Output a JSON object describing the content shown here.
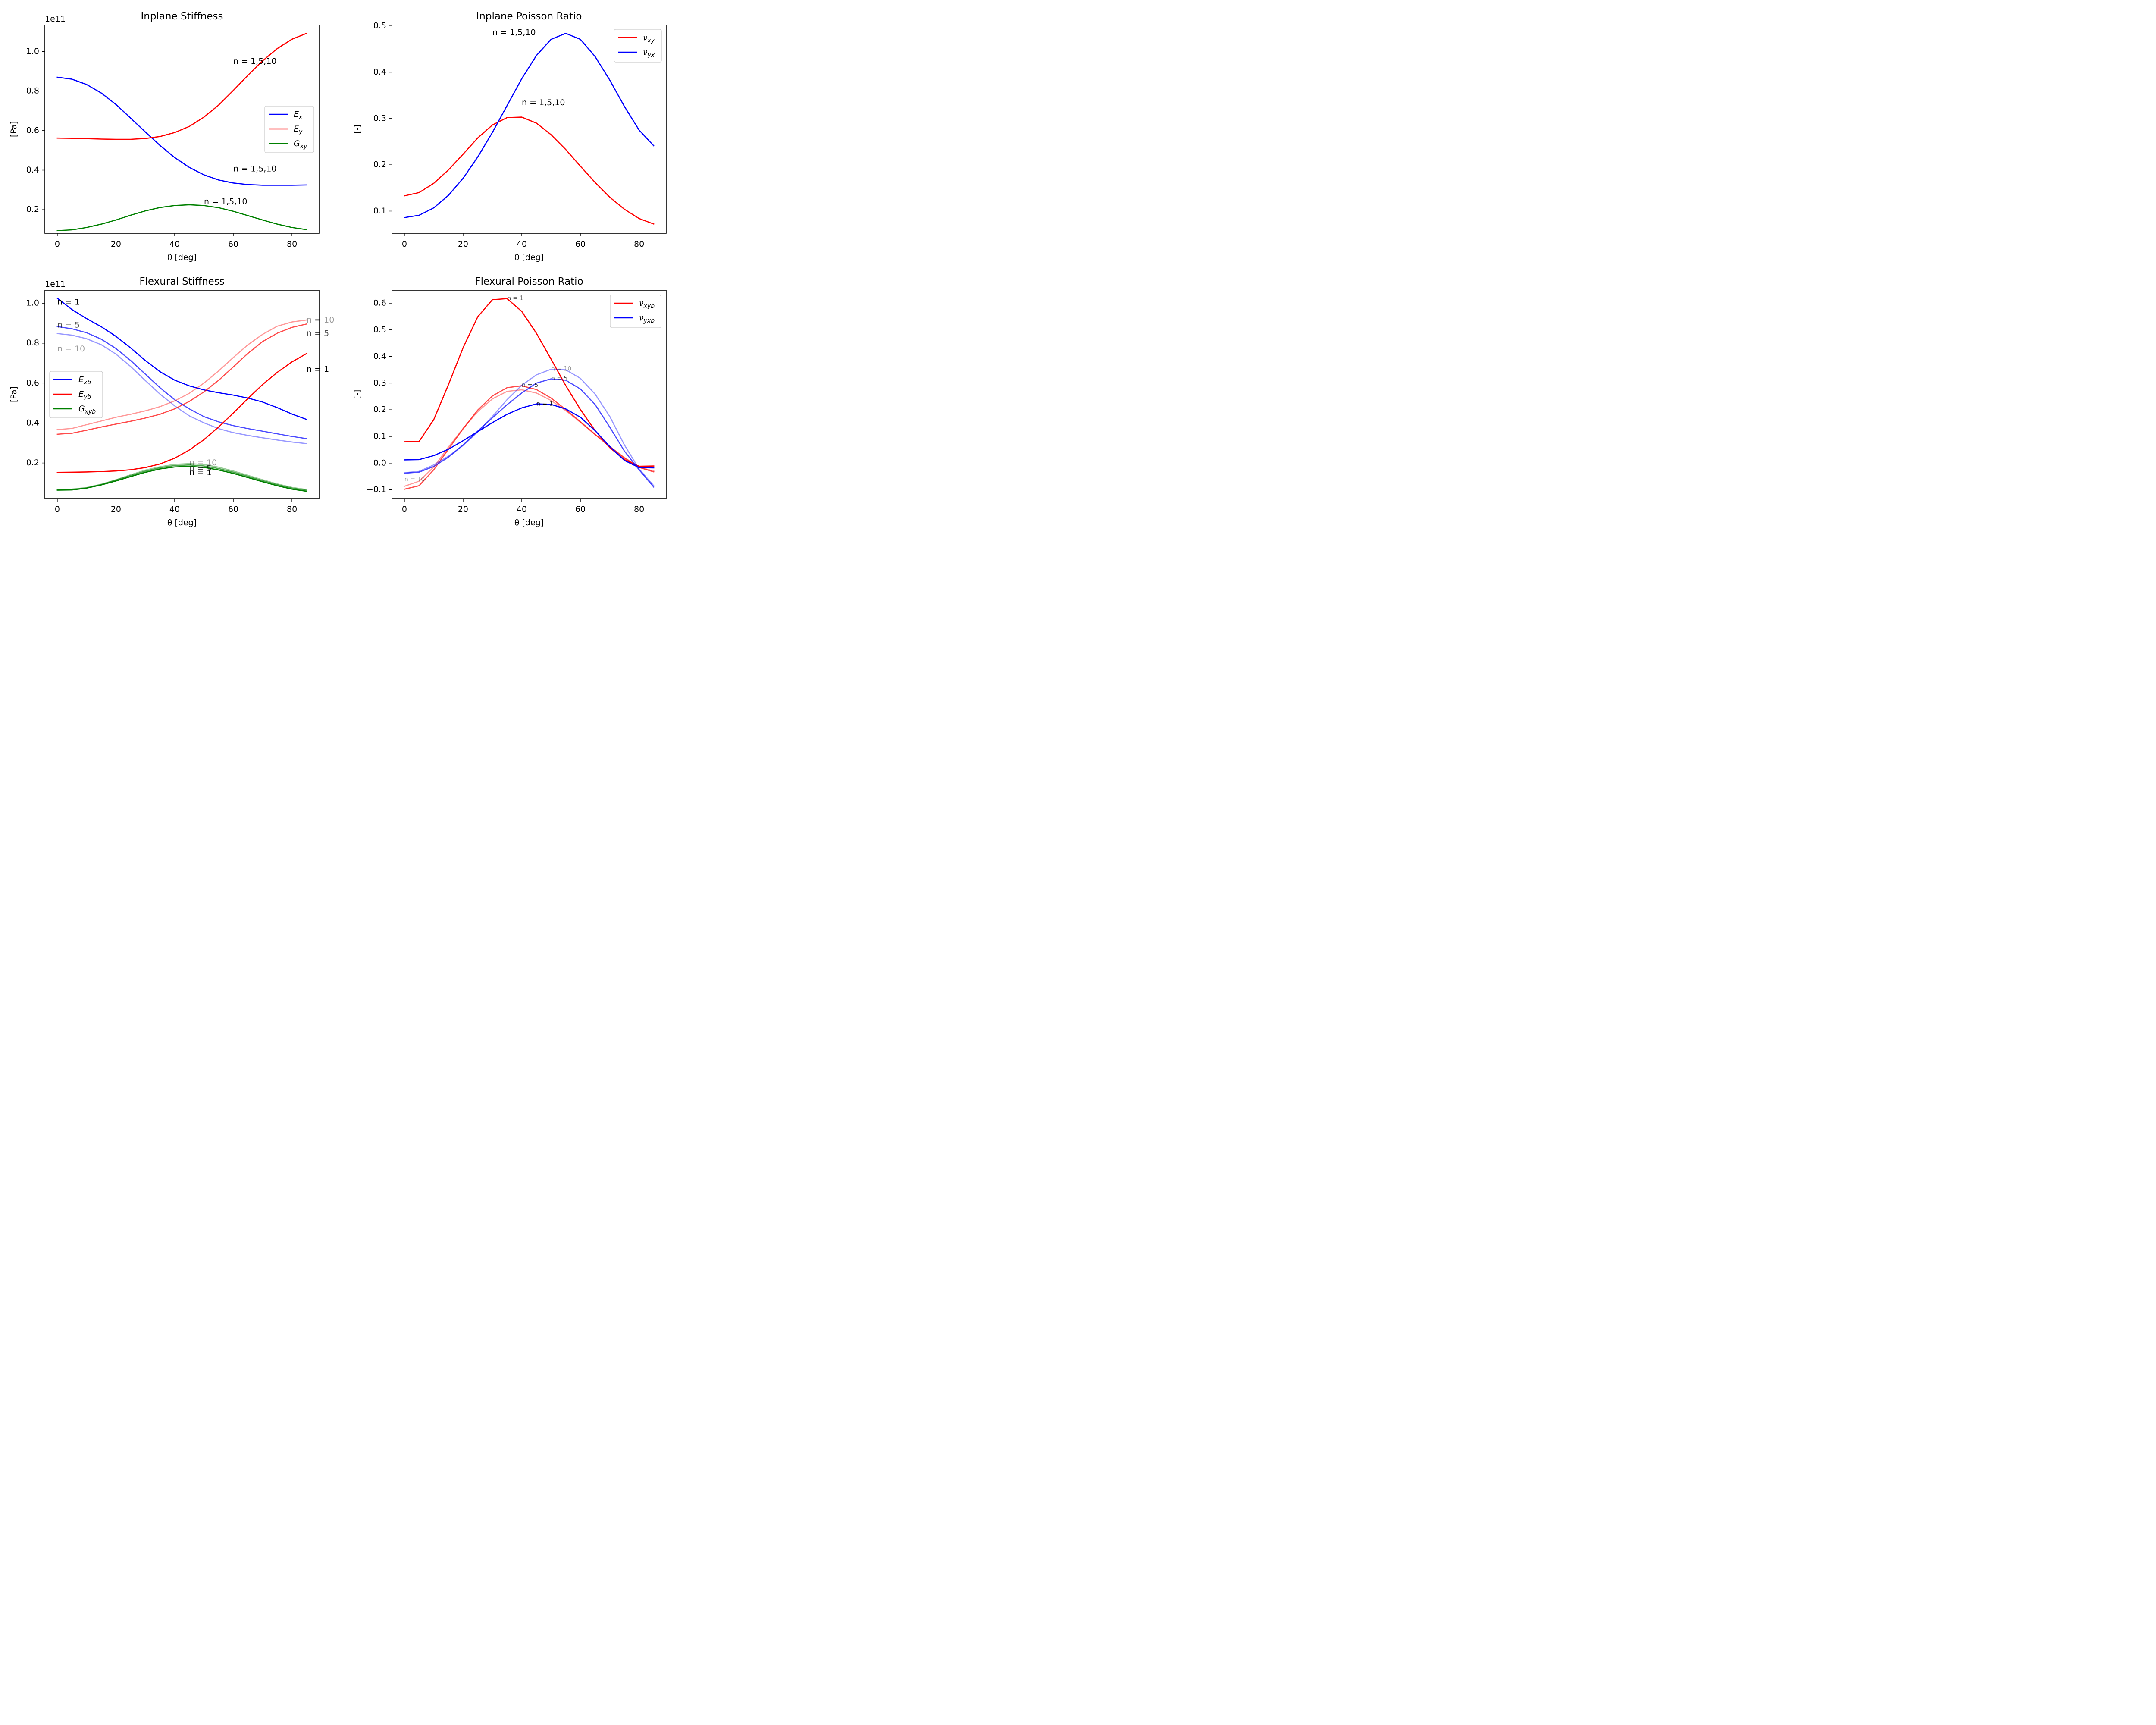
{
  "chart_data": [
    {
      "type": "line",
      "title": "Inplane Stiffness",
      "xlabel": "θ [deg]",
      "ylabel": "[Pa]",
      "offset_text": "1e11",
      "xlim": [
        -4.25,
        89.25
      ],
      "ylim": [
        0.0805,
        1.134
      ],
      "xticks": [
        0,
        20,
        40,
        60,
        80
      ],
      "xtick_labels": [
        "0",
        "20",
        "40",
        "60",
        "80"
      ],
      "yticks": [
        0.2,
        0.4,
        0.6,
        0.8,
        1.0
      ],
      "ytick_labels": [
        "0.2",
        "0.4",
        "0.6",
        "0.8",
        "1.0"
      ],
      "x": [
        0,
        5,
        10,
        15,
        20,
        25,
        30,
        35,
        40,
        45,
        50,
        55,
        60,
        65,
        70,
        75,
        80,
        85
      ],
      "legend": {
        "position": "center-right",
        "entries": [
          {
            "label": "E",
            "sub": "x",
            "color": "#0000ff"
          },
          {
            "label": "E",
            "sub": "y",
            "color": "#ff0000"
          },
          {
            "label": "G",
            "sub": "xy",
            "color": "#008000"
          }
        ]
      },
      "series": [
        {
          "name": "E_x",
          "color": "#0000ff",
          "alpha": 1,
          "values": [
            0.87,
            0.86,
            0.833,
            0.79,
            0.732,
            0.663,
            0.593,
            0.525,
            0.464,
            0.414,
            0.376,
            0.35,
            0.335,
            0.327,
            0.324,
            0.324,
            0.324,
            0.325
          ]
        },
        {
          "name": "E_y",
          "color": "#ff0000",
          "alpha": 1,
          "values": [
            0.562,
            0.561,
            0.559,
            0.557,
            0.556,
            0.556,
            0.56,
            0.57,
            0.59,
            0.621,
            0.668,
            0.729,
            0.803,
            0.88,
            0.953,
            1.015,
            1.062,
            1.092
          ]
        },
        {
          "name": "G_xy",
          "color": "#008000",
          "alpha": 1,
          "values": [
            0.094,
            0.098,
            0.11,
            0.127,
            0.148,
            0.172,
            0.194,
            0.211,
            0.221,
            0.225,
            0.221,
            0.21,
            0.192,
            0.17,
            0.148,
            0.127,
            0.11,
            0.099
          ]
        }
      ],
      "annotations": [
        {
          "text": "n = 1,5,10",
          "x": 60,
          "y": 0.95,
          "color": "#ff0000",
          "alpha": 1,
          "size": 19
        },
        {
          "text": "n = 1,5,10",
          "x": 60,
          "y": 0.405,
          "color": "#0000ff",
          "alpha": 1,
          "size": 19
        },
        {
          "text": "n = 1,5,10",
          "x": 50,
          "y": 0.24,
          "color": "#008000",
          "alpha": 1,
          "size": 19
        }
      ]
    },
    {
      "type": "line",
      "title": "Inplane Poisson Ratio",
      "xlabel": "θ [deg]",
      "ylabel": "[-]",
      "offset_text": "",
      "xlim": [
        -4.25,
        89.25
      ],
      "ylim": [
        0.052,
        0.502
      ],
      "xticks": [
        0,
        20,
        40,
        60,
        80
      ],
      "xtick_labels": [
        "0",
        "20",
        "40",
        "60",
        "80"
      ],
      "yticks": [
        0.1,
        0.2,
        0.3,
        0.4,
        0.5
      ],
      "ytick_labels": [
        "0.1",
        "0.2",
        "0.3",
        "0.4",
        "0.5"
      ],
      "x": [
        0,
        5,
        10,
        15,
        20,
        25,
        30,
        35,
        40,
        45,
        50,
        55,
        60,
        65,
        70,
        75,
        80,
        85
      ],
      "legend": {
        "position": "top-right",
        "entries": [
          {
            "label": "ν",
            "sub": "xy",
            "color": "#ff0000"
          },
          {
            "label": "ν",
            "sub": "yx",
            "color": "#0000ff"
          }
        ]
      },
      "series": [
        {
          "name": "ν_xy",
          "color": "#ff0000",
          "alpha": 1,
          "values": [
            0.133,
            0.14,
            0.16,
            0.189,
            0.223,
            0.258,
            0.286,
            0.302,
            0.303,
            0.29,
            0.265,
            0.233,
            0.197,
            0.162,
            0.13,
            0.104,
            0.084,
            0.072
          ]
        },
        {
          "name": "ν_yx",
          "color": "#0000ff",
          "alpha": 1,
          "values": [
            0.086,
            0.091,
            0.107,
            0.134,
            0.171,
            0.217,
            0.27,
            0.328,
            0.386,
            0.436,
            0.471,
            0.484,
            0.471,
            0.434,
            0.383,
            0.326,
            0.275,
            0.241
          ]
        }
      ],
      "annotations": [
        {
          "text": "n = 1,5,10",
          "x": 30,
          "y": 0.485,
          "color": "#0000ff",
          "alpha": 1,
          "size": 19
        },
        {
          "text": "n = 1,5,10",
          "x": 40,
          "y": 0.334,
          "color": "#ff0000",
          "alpha": 1,
          "size": 19
        }
      ]
    },
    {
      "type": "line",
      "title": "Flexural Stiffness",
      "xlabel": "θ [deg]",
      "ylabel": "[Pa]",
      "offset_text": "1e11",
      "xlim": [
        -4.25,
        89.25
      ],
      "ylim": [
        0.022,
        1.065
      ],
      "xticks": [
        0,
        20,
        40,
        60,
        80
      ],
      "xtick_labels": [
        "0",
        "20",
        "40",
        "60",
        "80"
      ],
      "yticks": [
        0.2,
        0.4,
        0.6,
        0.8,
        1.0
      ],
      "ytick_labels": [
        "0.2",
        "0.4",
        "0.6",
        "0.8",
        "1.0"
      ],
      "x": [
        0,
        5,
        10,
        15,
        20,
        25,
        30,
        35,
        40,
        45,
        50,
        55,
        60,
        65,
        70,
        75,
        80,
        85
      ],
      "legend": {
        "position": "center-left",
        "entries": [
          {
            "label": "E",
            "sub": "xb",
            "color": "#0000ff"
          },
          {
            "label": "E",
            "sub": "yb",
            "color": "#ff0000"
          },
          {
            "label": "G",
            "sub": "xyb",
            "color": "#008000"
          }
        ]
      },
      "series": [
        {
          "name": "E_xb n=1",
          "color": "#0000ff",
          "alpha": 1,
          "values": [
            1.025,
            0.968,
            0.923,
            0.882,
            0.834,
            0.776,
            0.713,
            0.657,
            0.615,
            0.586,
            0.566,
            0.552,
            0.54,
            0.525,
            0.505,
            0.477,
            0.445,
            0.418
          ]
        },
        {
          "name": "E_xb n=5",
          "color": "#0000ff",
          "alpha": 0.7,
          "values": [
            0.883,
            0.872,
            0.852,
            0.82,
            0.773,
            0.713,
            0.645,
            0.577,
            0.517,
            0.471,
            0.432,
            0.406,
            0.387,
            0.372,
            0.359,
            0.346,
            0.333,
            0.322
          ]
        },
        {
          "name": "E_xb n=10",
          "color": "#0000ff",
          "alpha": 0.4,
          "values": [
            0.848,
            0.84,
            0.822,
            0.792,
            0.745,
            0.683,
            0.613,
            0.545,
            0.486,
            0.436,
            0.401,
            0.372,
            0.352,
            0.338,
            0.326,
            0.315,
            0.305,
            0.297
          ]
        },
        {
          "name": "E_yb n=1",
          "color": "#ff0000",
          "alpha": 1,
          "values": [
            0.153,
            0.154,
            0.155,
            0.157,
            0.16,
            0.166,
            0.177,
            0.195,
            0.224,
            0.265,
            0.317,
            0.38,
            0.45,
            0.523,
            0.593,
            0.654,
            0.706,
            0.748
          ]
        },
        {
          "name": "E_yb n=5",
          "color": "#ff0000",
          "alpha": 0.7,
          "values": [
            0.344,
            0.349,
            0.364,
            0.38,
            0.395,
            0.409,
            0.425,
            0.444,
            0.471,
            0.508,
            0.556,
            0.614,
            0.681,
            0.749,
            0.808,
            0.85,
            0.879,
            0.896
          ]
        },
        {
          "name": "E_yb n=10",
          "color": "#ff0000",
          "alpha": 0.4,
          "values": [
            0.367,
            0.373,
            0.392,
            0.41,
            0.429,
            0.444,
            0.461,
            0.482,
            0.511,
            0.549,
            0.6,
            0.661,
            0.728,
            0.792,
            0.844,
            0.885,
            0.906,
            0.916
          ]
        },
        {
          "name": "G_xyb n=1",
          "color": "#008000",
          "alpha": 1,
          "values": [
            0.064,
            0.065,
            0.074,
            0.09,
            0.11,
            0.132,
            0.153,
            0.17,
            0.18,
            0.183,
            0.178,
            0.165,
            0.148,
            0.127,
            0.106,
            0.086,
            0.069,
            0.058
          ]
        },
        {
          "name": "G_xyb n=5",
          "color": "#008000",
          "alpha": 0.7,
          "values": [
            0.066,
            0.067,
            0.075,
            0.092,
            0.114,
            0.137,
            0.159,
            0.176,
            0.187,
            0.19,
            0.185,
            0.172,
            0.154,
            0.133,
            0.111,
            0.091,
            0.074,
            0.063
          ]
        },
        {
          "name": "G_xyb n=10",
          "color": "#008000",
          "alpha": 0.4,
          "values": [
            0.068,
            0.069,
            0.077,
            0.094,
            0.116,
            0.141,
            0.164,
            0.181,
            0.193,
            0.197,
            0.192,
            0.179,
            0.16,
            0.138,
            0.116,
            0.095,
            0.078,
            0.067
          ]
        }
      ],
      "annotations": [
        {
          "text": "n = 1",
          "x": 0,
          "y": 1.005,
          "color": "#0000ff",
          "alpha": 1,
          "size": 19
        },
        {
          "text": "n = 5",
          "x": 0,
          "y": 0.89,
          "color": "#0000ff",
          "alpha": 0.7,
          "size": 19
        },
        {
          "text": "n = 10",
          "x": 0,
          "y": 0.77,
          "color": "#0000ff",
          "alpha": 0.4,
          "size": 19
        },
        {
          "text": "n = 10",
          "x": 85,
          "y": 0.915,
          "color": "#ff0000",
          "alpha": 0.4,
          "size": 19
        },
        {
          "text": "n = 5",
          "x": 85,
          "y": 0.848,
          "color": "#ff0000",
          "alpha": 0.7,
          "size": 19
        },
        {
          "text": "n = 1",
          "x": 85,
          "y": 0.668,
          "color": "#ff0000",
          "alpha": 1,
          "size": 19
        },
        {
          "text": "n = 10",
          "x": 45,
          "y": 0.2,
          "color": "#008000",
          "alpha": 0.4,
          "size": 19
        },
        {
          "text": "n = 5",
          "x": 45,
          "y": 0.172,
          "color": "#008000",
          "alpha": 0.7,
          "size": 19
        },
        {
          "text": "n = 1",
          "x": 45,
          "y": 0.15,
          "color": "#008000",
          "alpha": 1,
          "size": 19
        }
      ]
    },
    {
      "type": "line",
      "title": "Flexural Poisson Ratio",
      "xlabel": "θ [deg]",
      "ylabel": "[-]",
      "offset_text": "",
      "xlim": [
        -4.25,
        89.25
      ],
      "ylim": [
        -0.133,
        0.6485
      ],
      "xticks": [
        0,
        20,
        40,
        60,
        80
      ],
      "xtick_labels": [
        "0",
        "20",
        "40",
        "60",
        "80"
      ],
      "yticks": [
        -0.1,
        0.0,
        0.1,
        0.2,
        0.3,
        0.4,
        0.5,
        0.6
      ],
      "ytick_labels": [
        "−0.1",
        "0.0",
        "0.1",
        "0.2",
        "0.3",
        "0.4",
        "0.5",
        "0.6"
      ],
      "x": [
        0,
        5,
        10,
        15,
        20,
        25,
        30,
        35,
        40,
        45,
        50,
        55,
        60,
        65,
        70,
        75,
        80,
        85
      ],
      "legend": {
        "position": "top-right",
        "entries": [
          {
            "label": "ν",
            "sub": "xyb",
            "color": "#ff0000"
          },
          {
            "label": "ν",
            "sub": "yxb",
            "color": "#0000ff"
          }
        ]
      },
      "series": [
        {
          "name": "ν_xyb n=1",
          "color": "#ff0000",
          "alpha": 1,
          "values": [
            0.08,
            0.081,
            0.163,
            0.294,
            0.433,
            0.549,
            0.613,
            0.617,
            0.569,
            0.487,
            0.39,
            0.291,
            0.201,
            0.122,
            0.058,
            0.013,
            -0.012,
            -0.011
          ]
        },
        {
          "name": "ν_xyb n=5",
          "color": "#ff0000",
          "alpha": 0.7,
          "values": [
            -0.098,
            -0.085,
            -0.025,
            0.052,
            0.129,
            0.199,
            0.252,
            0.283,
            0.29,
            0.276,
            0.244,
            0.201,
            0.155,
            0.108,
            0.062,
            0.019,
            -0.016,
            -0.033
          ]
        },
        {
          "name": "ν_xyb n=10",
          "color": "#ff0000",
          "alpha": 0.4,
          "values": [
            -0.087,
            -0.068,
            -0.015,
            0.06,
            0.13,
            0.193,
            0.241,
            0.269,
            0.275,
            0.263,
            0.235,
            0.197,
            0.153,
            0.107,
            0.062,
            0.021,
            -0.015,
            -0.03
          ]
        },
        {
          "name": "ν_yxb n=1",
          "color": "#0000ff",
          "alpha": 1,
          "values": [
            0.012,
            0.013,
            0.028,
            0.052,
            0.084,
            0.118,
            0.152,
            0.183,
            0.207,
            0.222,
            0.22,
            0.203,
            0.172,
            0.122,
            0.062,
            0.01,
            -0.017,
            -0.018
          ]
        },
        {
          "name": "ν_yxb n=5",
          "color": "#0000ff",
          "alpha": 0.7,
          "values": [
            -0.038,
            -0.034,
            -0.013,
            0.022,
            0.068,
            0.12,
            0.17,
            0.219,
            0.263,
            0.3,
            0.316,
            0.311,
            0.278,
            0.22,
            0.135,
            0.045,
            -0.025,
            -0.09
          ]
        },
        {
          "name": "ν_yxb n=10",
          "color": "#0000ff",
          "alpha": 0.4,
          "values": [
            -0.036,
            -0.031,
            -0.007,
            0.026,
            0.066,
            0.117,
            0.175,
            0.238,
            0.292,
            0.331,
            0.352,
            0.35,
            0.318,
            0.259,
            0.175,
            0.068,
            -0.022,
            -0.085
          ]
        }
      ],
      "annotations": [
        {
          "text": "n = 1",
          "x": 35,
          "y": 0.618,
          "color": "#ff0000",
          "alpha": 1,
          "size": 14
        },
        {
          "text": "n = 5",
          "x": 40,
          "y": 0.292,
          "color": "#ff0000",
          "alpha": 0.7,
          "size": 14
        },
        {
          "text": "n = 10",
          "x": 0,
          "y": -0.062,
          "color": "#ff0000",
          "alpha": 0.4,
          "size": 14
        },
        {
          "text": "n = 10",
          "x": 50,
          "y": 0.353,
          "color": "#0000ff",
          "alpha": 0.4,
          "size": 14
        },
        {
          "text": "n = 5",
          "x": 50,
          "y": 0.317,
          "color": "#0000ff",
          "alpha": 0.7,
          "size": 14
        },
        {
          "text": "n = 1",
          "x": 45,
          "y": 0.222,
          "color": "#0000ff",
          "alpha": 1,
          "size": 14
        }
      ]
    }
  ]
}
